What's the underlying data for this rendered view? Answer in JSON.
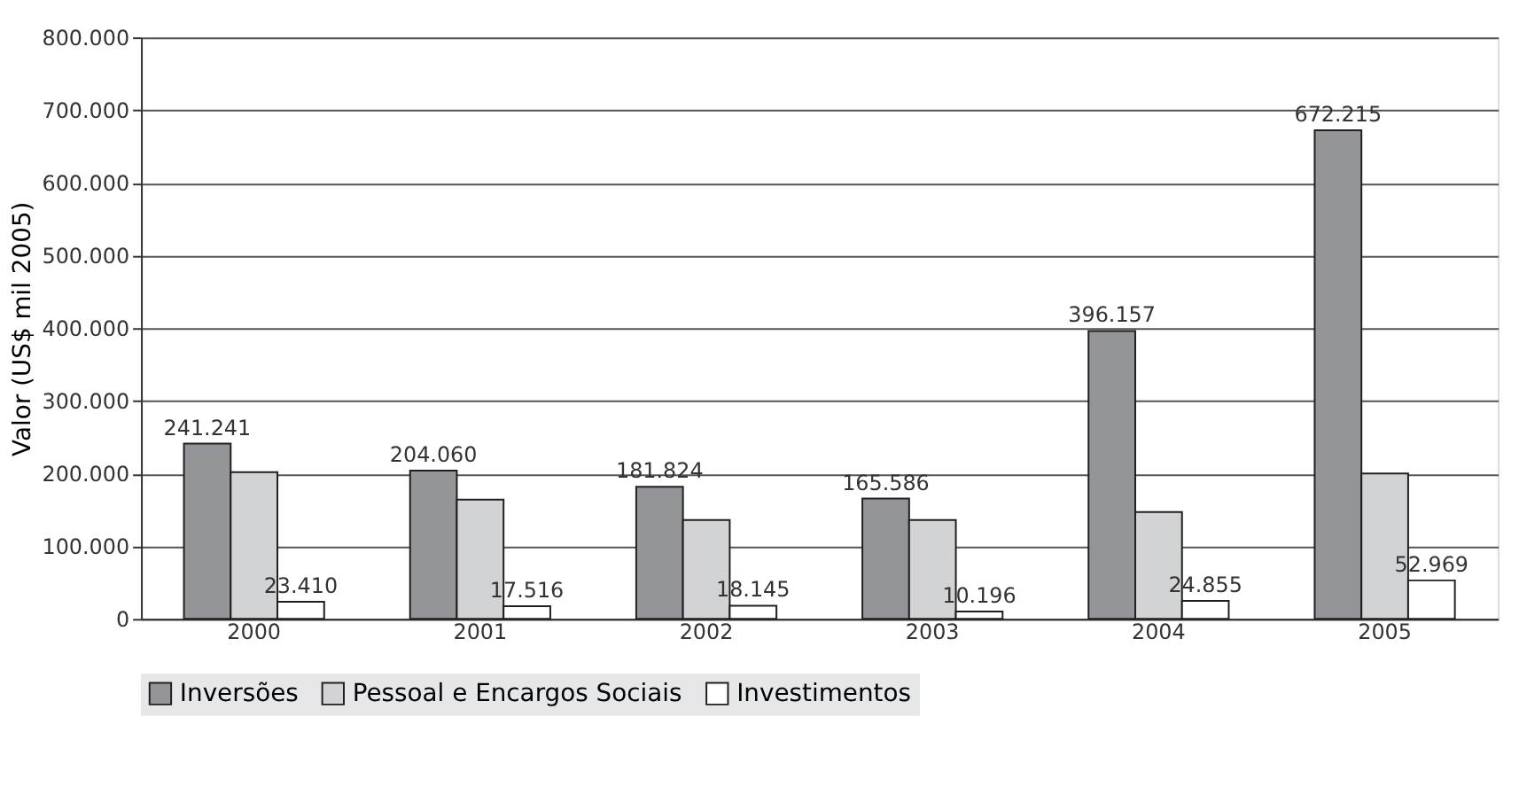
{
  "chart_data": {
    "type": "bar",
    "ylabel": "Valor (US$ mil  2005)",
    "categories": [
      "2000",
      "2001",
      "2002",
      "2003",
      "2004",
      "2005"
    ],
    "series": [
      {
        "name": "Inversões",
        "color": "#939598",
        "values": [
          241241,
          204060,
          181824,
          165586,
          396157,
          672215
        ],
        "value_labels": [
          "241.241",
          "204.060",
          "181.824",
          "165.586",
          "396.157",
          "672.215"
        ]
      },
      {
        "name": "Pessoal e Encargos Sociais",
        "color": "#d1d3d4",
        "values": [
          202000,
          164000,
          136000,
          136000,
          147000,
          200000
        ]
      },
      {
        "name": "Investimentos",
        "color": "#ffffff",
        "values": [
          23410,
          17516,
          18145,
          10196,
          24855,
          52969
        ],
        "value_labels": [
          "23.410",
          "17.516",
          "18.145",
          "10.196",
          "24.855",
          "52.969"
        ]
      }
    ],
    "ylim": [
      0,
      800000
    ],
    "yticks": [
      {
        "value": 0,
        "label": "0"
      },
      {
        "value": 100000,
        "label": "100.000"
      },
      {
        "value": 200000,
        "label": "200.000"
      },
      {
        "value": 300000,
        "label": "300.000"
      },
      {
        "value": 400000,
        "label": "400.000"
      },
      {
        "value": 500000,
        "label": "500.000"
      },
      {
        "value": 600000,
        "label": "600.000"
      },
      {
        "value": 700000,
        "label": "700.000"
      },
      {
        "value": 800000,
        "label": "800.000"
      }
    ],
    "grid": "y",
    "legend": "bottom"
  }
}
